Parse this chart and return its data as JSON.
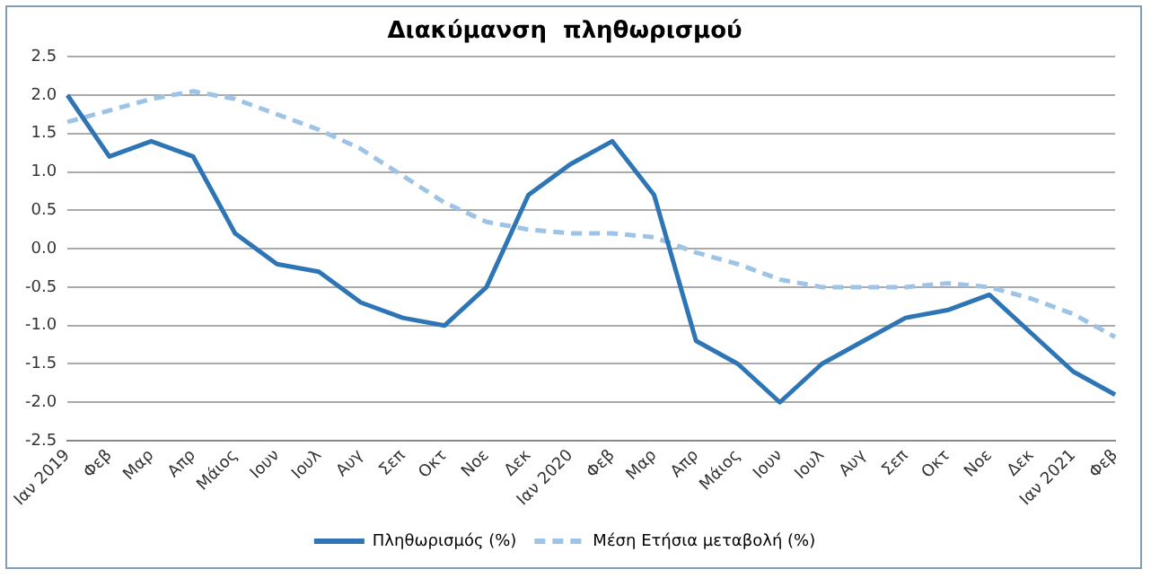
{
  "chart_data": {
    "type": "line",
    "title": "Διακύμανση  πληθωρισμού",
    "categories": [
      "Ιαν 2019",
      "Φεβ",
      "Μαρ",
      "Απρ",
      "Μάιος",
      "Ιουν",
      "Ιουλ",
      "Αυγ",
      "Σεπ",
      "Οκτ",
      "Νοε",
      "Δεκ",
      "Ιαν 2020",
      "Φεβ",
      "Μαρ",
      "Απρ",
      "Μάιος",
      "Ιουν",
      "Ιουλ",
      "Αυγ",
      "Σεπ",
      "Οκτ",
      "Νοε",
      "Δεκ",
      "Ιαν 2021",
      "Φεβ"
    ],
    "series": [
      {
        "name": "Πληθωρισμός (%)",
        "color": "#2e75b6",
        "line_style": "solid",
        "values": [
          2.0,
          1.2,
          1.4,
          1.2,
          0.2,
          -0.2,
          -0.3,
          -0.7,
          -0.9,
          -1.0,
          -0.5,
          0.7,
          1.1,
          1.4,
          0.7,
          -1.2,
          -1.5,
          -2.0,
          -1.5,
          -1.2,
          -0.9,
          -0.8,
          -0.6,
          -1.1,
          -1.6,
          -1.9
        ]
      },
      {
        "name": "Μέση Ετήσια μεταβολή (%)",
        "color": "#9dc3e6",
        "line_style": "dashed",
        "values": [
          1.65,
          1.8,
          1.95,
          2.05,
          1.95,
          1.75,
          1.55,
          1.3,
          0.95,
          0.6,
          0.35,
          0.25,
          0.2,
          0.2,
          0.15,
          -0.05,
          -0.2,
          -0.4,
          -0.5,
          -0.5,
          -0.5,
          -0.45,
          -0.5,
          -0.65,
          -0.85,
          -1.15
        ]
      }
    ],
    "ylim": [
      -2.5,
      2.5
    ],
    "yticks": [
      2.5,
      {
        "value": 2.0,
        "label": "2.0"
      },
      1.5,
      {
        "value": 1.0,
        "label": "1.0"
      },
      0.5,
      {
        "value": 0.0,
        "label": "0.0"
      },
      -0.5,
      {
        "value": -1.0,
        "label": "-1.0"
      },
      -1.5,
      {
        "value": -2.0,
        "label": "-2.0"
      },
      -2.5
    ],
    "grid": "y",
    "legend": "bottom",
    "marker": "none"
  }
}
